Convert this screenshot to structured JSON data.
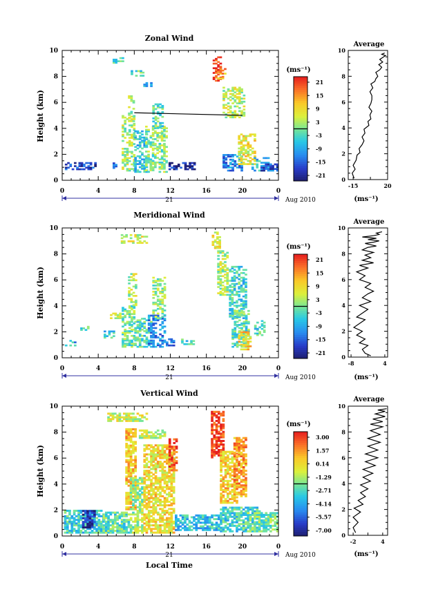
{
  "figure": {
    "date_label": "Aug 2010",
    "day_label": "21",
    "xlabel": "Local Time",
    "unit_label": "(ms⁻¹)"
  },
  "chart_data": [
    {
      "type": "heatmap",
      "title": "Zonal Wind",
      "xlabel": "",
      "ylabel": "Height (km)",
      "xticks": [
        "0",
        "4",
        "8",
        "12",
        "16",
        "20",
        "0"
      ],
      "yticks": [
        "0",
        "2",
        "4",
        "6",
        "8",
        "10"
      ],
      "xlim": [
        0,
        24
      ],
      "ylim": [
        0,
        10
      ],
      "colorbar_label": "(ms⁻¹)",
      "colorbar_ticks": [
        "21",
        "15",
        "9",
        "3",
        "-3",
        "-9",
        "-15",
        "-21"
      ],
      "colorbar_range": [
        -24,
        24
      ],
      "overlay_line": {
        "x": [
          8,
          20
        ],
        "y": [
          5.2,
          5.0
        ]
      },
      "clusters": [
        {
          "x": [
            0.3,
            3.8
          ],
          "y": [
            0.8,
            1.4
          ],
          "v": -18
        },
        {
          "x": [
            5.6,
            6.1
          ],
          "y": [
            0.9,
            1.3
          ],
          "v": -16
        },
        {
          "x": [
            6.6,
            7.9
          ],
          "y": [
            0.7,
            5.0
          ],
          "v": 3
        },
        {
          "x": [
            7.3,
            7.9
          ],
          "y": [
            4.5,
            6.5
          ],
          "v": 3
        },
        {
          "x": [
            8.0,
            9.5
          ],
          "y": [
            0.6,
            3.8
          ],
          "v": -6
        },
        {
          "x": [
            9.2,
            11.7
          ],
          "y": [
            0.6,
            4.2
          ],
          "v": 1
        },
        {
          "x": [
            10.0,
            11.2
          ],
          "y": [
            4.0,
            6.0
          ],
          "v": -2
        },
        {
          "x": [
            5.6,
            7.0
          ],
          "y": [
            9.0,
            9.4
          ],
          "v": -4
        },
        {
          "x": [
            7.6,
            9.0
          ],
          "y": [
            8.0,
            8.4
          ],
          "v": -2
        },
        {
          "x": [
            9.0,
            10.0
          ],
          "y": [
            7.2,
            7.5
          ],
          "v": -8
        },
        {
          "x": [
            11.8,
            14.8
          ],
          "y": [
            0.8,
            1.4
          ],
          "v": -20
        },
        {
          "x": [
            16.7,
            17.5
          ],
          "y": [
            7.5,
            9.5
          ],
          "v": 22
        },
        {
          "x": [
            17.2,
            18.2
          ],
          "y": [
            7.8,
            8.6
          ],
          "v": 14
        },
        {
          "x": [
            17.8,
            20.3
          ],
          "y": [
            4.8,
            7.2
          ],
          "v": 4
        },
        {
          "x": [
            17.8,
            19.9
          ],
          "y": [
            0.7,
            2.0
          ],
          "v": -12
        },
        {
          "x": [
            19.5,
            21.5
          ],
          "y": [
            1.2,
            3.6
          ],
          "v": 8
        },
        {
          "x": [
            21.0,
            23.0
          ],
          "y": [
            0.7,
            1.7
          ],
          "v": -8
        },
        {
          "x": [
            22.0,
            24.0
          ],
          "y": [
            0.7,
            1.3
          ],
          "v": -16
        }
      ]
    },
    {
      "type": "heatmap",
      "title": "Meridional Wind",
      "xlabel": "",
      "ylabel": "Height (km)",
      "xticks": [
        "0",
        "4",
        "8",
        "12",
        "16",
        "20",
        "0"
      ],
      "yticks": [
        "0",
        "2",
        "4",
        "6",
        "8",
        "10"
      ],
      "xlim": [
        0,
        24
      ],
      "ylim": [
        0,
        10
      ],
      "colorbar_label": "(ms⁻¹)",
      "colorbar_ticks": [
        "21",
        "15",
        "9",
        "3",
        "-3",
        "-9",
        "-15",
        "-21"
      ],
      "colorbar_range": [
        -24,
        24
      ],
      "clusters": [
        {
          "x": [
            0.3,
            1.5
          ],
          "y": [
            0.9,
            1.3
          ],
          "v": -8
        },
        {
          "x": [
            2.0,
            3.0
          ],
          "y": [
            2.1,
            2.4
          ],
          "v": -2
        },
        {
          "x": [
            4.6,
            5.8
          ],
          "y": [
            1.5,
            2.2
          ],
          "v": -6
        },
        {
          "x": [
            5.3,
            6.4
          ],
          "y": [
            3.0,
            3.4
          ],
          "v": 2
        },
        {
          "x": [
            6.6,
            7.9
          ],
          "y": [
            0.8,
            4.0
          ],
          "v": 0
        },
        {
          "x": [
            7.3,
            8.2
          ],
          "y": [
            4.0,
            6.5
          ],
          "v": 4
        },
        {
          "x": [
            8.0,
            10.0
          ],
          "y": [
            0.8,
            3.0
          ],
          "v": -3
        },
        {
          "x": [
            9.5,
            11.5
          ],
          "y": [
            0.8,
            3.3
          ],
          "v": -12
        },
        {
          "x": [
            10.0,
            11.5
          ],
          "y": [
            3.0,
            6.2
          ],
          "v": 2
        },
        {
          "x": [
            6.5,
            9.5
          ],
          "y": [
            8.8,
            9.4
          ],
          "v": 6
        },
        {
          "x": [
            11.5,
            12.5
          ],
          "y": [
            0.9,
            1.4
          ],
          "v": -15
        },
        {
          "x": [
            13.2,
            14.5
          ],
          "y": [
            1.0,
            1.4
          ],
          "v": -4
        },
        {
          "x": [
            16.6,
            17.4
          ],
          "y": [
            8.4,
            9.6
          ],
          "v": 8
        },
        {
          "x": [
            17.2,
            18.3
          ],
          "y": [
            4.8,
            8.2
          ],
          "v": 3
        },
        {
          "x": [
            18.5,
            20.5
          ],
          "y": [
            3.0,
            7.0
          ],
          "v": -4
        },
        {
          "x": [
            18.8,
            20.8
          ],
          "y": [
            0.8,
            3.6
          ],
          "v": -2
        },
        {
          "x": [
            19.5,
            21.0
          ],
          "y": [
            0.6,
            2.0
          ],
          "v": 10
        },
        {
          "x": [
            21.3,
            22.5
          ],
          "y": [
            1.7,
            2.9
          ],
          "v": -4
        }
      ]
    },
    {
      "type": "heatmap",
      "title": "Vertical Wind",
      "xlabel": "Local Time",
      "ylabel": "Height (km)",
      "xticks": [
        "0",
        "4",
        "8",
        "12",
        "16",
        "20",
        "0"
      ],
      "yticks": [
        "0",
        "2",
        "4",
        "6",
        "8",
        "10"
      ],
      "xlim": [
        0,
        24
      ],
      "ylim": [
        0,
        10
      ],
      "colorbar_label": "(ms⁻¹)",
      "colorbar_ticks": [
        "3.00",
        "1.57",
        "0.14",
        "-1.29",
        "-2.71",
        "-4.14",
        "-5.57",
        "-7.00"
      ],
      "colorbar_range": [
        -7.7,
        3.7
      ],
      "clusters": [
        {
          "x": [
            0.2,
            4.5
          ],
          "y": [
            0.2,
            2.0
          ],
          "v": -3.0
        },
        {
          "x": [
            2.2,
            3.5
          ],
          "y": [
            0.6,
            2.0
          ],
          "v": -6.5
        },
        {
          "x": [
            4.5,
            7.5
          ],
          "y": [
            0.2,
            1.8
          ],
          "v": -2.5
        },
        {
          "x": [
            7.0,
            8.2
          ],
          "y": [
            2.0,
            8.2
          ],
          "v": 0.8
        },
        {
          "x": [
            7.5,
            9.0
          ],
          "y": [
            0.2,
            4.5
          ],
          "v": -1.5
        },
        {
          "x": [
            9.0,
            12.3
          ],
          "y": [
            0.2,
            7.0
          ],
          "v": 0.2
        },
        {
          "x": [
            11.8,
            12.8
          ],
          "y": [
            5.0,
            7.5
          ],
          "v": 3.0
        },
        {
          "x": [
            5.0,
            9.5
          ],
          "y": [
            8.8,
            9.4
          ],
          "v": -0.6
        },
        {
          "x": [
            8.5,
            11.5
          ],
          "y": [
            7.5,
            8.2
          ],
          "v": -0.8
        },
        {
          "x": [
            12.5,
            17.5
          ],
          "y": [
            0.4,
            1.6
          ],
          "v": -3.5
        },
        {
          "x": [
            16.5,
            18.0
          ],
          "y": [
            6.0,
            9.6
          ],
          "v": 3.2
        },
        {
          "x": [
            17.5,
            19.5
          ],
          "y": [
            2.5,
            6.5
          ],
          "v": 0.5
        },
        {
          "x": [
            19.0,
            20.5
          ],
          "y": [
            3.0,
            7.5
          ],
          "v": 1.5
        },
        {
          "x": [
            17.5,
            22.0
          ],
          "y": [
            0.3,
            2.2
          ],
          "v": -3.0
        },
        {
          "x": [
            20.5,
            24.0
          ],
          "y": [
            0.3,
            1.8
          ],
          "v": -2.2
        }
      ]
    },
    {
      "type": "line",
      "title": "Average",
      "xlabel": "(ms⁻¹)",
      "xticks": [
        "-15",
        "20"
      ],
      "yticks": [
        "0",
        "2",
        "4",
        "6",
        "8",
        "10"
      ],
      "xlim": [
        -20,
        20
      ],
      "ylim": [
        0,
        10
      ],
      "x": [
        -14,
        -16,
        -13,
        -15,
        -12,
        -11,
        -8,
        -9,
        -6,
        -4,
        -6,
        -3,
        -4,
        1,
        0,
        3,
        2,
        4,
        1,
        3,
        4,
        4,
        2,
        5,
        3,
        7,
        8,
        10,
        8,
        12,
        14,
        11,
        15,
        12,
        16,
        18,
        14,
        17
      ],
      "y": [
        0.1,
        0.5,
        0.8,
        1.1,
        1.5,
        1.9,
        2.1,
        2.4,
        2.7,
        3.0,
        3.3,
        3.6,
        3.9,
        4.2,
        4.5,
        4.7,
        5.0,
        5.3,
        5.6,
        5.9,
        6.2,
        6.5,
        6.8,
        7.1,
        7.4,
        7.6,
        7.8,
        8.0,
        8.3,
        8.5,
        8.7,
        8.9,
        9.1,
        9.3,
        9.5,
        9.6,
        9.7,
        9.8
      ]
    },
    {
      "type": "line",
      "title": "Average",
      "xlabel": "(ms⁻¹)",
      "xticks": [
        "-8",
        "4"
      ],
      "yticks": [
        "0",
        "2",
        "4",
        "6",
        "8",
        "10"
      ],
      "xlim": [
        -9,
        5
      ],
      "ylim": [
        0,
        10
      ],
      "x": [
        -1,
        -3,
        -4,
        -2,
        -5,
        -3,
        -6,
        -4,
        -7,
        -5,
        -3,
        -6,
        -4,
        -2,
        -5,
        -1,
        -4,
        -2,
        0,
        -3,
        -1,
        -5,
        -3,
        -6,
        -2,
        -5,
        0,
        -4,
        -1,
        -3,
        0,
        -4,
        -2,
        1,
        -3,
        0,
        2,
        -2,
        1,
        -4,
        0,
        2,
        1,
        3
      ],
      "y": [
        0.1,
        0.3,
        0.6,
        0.9,
        1.1,
        1.4,
        1.7,
        2.0,
        2.3,
        2.6,
        2.9,
        3.1,
        3.4,
        3.7,
        4.0,
        4.3,
        4.6,
        4.9,
        5.1,
        5.4,
        5.7,
        6.0,
        6.3,
        6.6,
        6.9,
        7.1,
        7.3,
        7.5,
        7.7,
        7.9,
        8.1,
        8.3,
        8.5,
        8.6,
        8.8,
        8.9,
        9.0,
        9.1,
        9.2,
        9.3,
        9.4,
        9.5,
        9.6,
        9.7
      ]
    },
    {
      "type": "line",
      "title": "Average",
      "xlabel": "(ms⁻¹)",
      "xticks": [
        "-2",
        "4"
      ],
      "yticks": [
        "0",
        "2",
        "4",
        "6",
        "8",
        "10"
      ],
      "xlim": [
        -3,
        5
      ],
      "ylim": [
        0,
        10
      ],
      "x": [
        -1.5,
        -2,
        -1,
        -2,
        -0.5,
        -1.8,
        0,
        -1,
        0.5,
        -0.5,
        1,
        -0.5,
        1.5,
        0,
        2,
        0,
        2.5,
        0.5,
        3,
        0.5,
        3,
        1,
        3.5,
        1,
        3.5,
        1.5,
        4,
        1.5,
        4,
        2,
        4.5,
        2.5,
        4.5,
        3,
        4.8
      ],
      "y": [
        0.2,
        0.6,
        1.0,
        1.4,
        1.8,
        2.1,
        2.4,
        2.7,
        3.0,
        3.3,
        3.6,
        3.9,
        4.2,
        4.5,
        4.8,
        5.1,
        5.4,
        5.7,
        6.0,
        6.3,
        6.6,
        6.9,
        7.2,
        7.5,
        7.8,
        8.1,
        8.4,
        8.6,
        8.8,
        9.0,
        9.2,
        9.4,
        9.6,
        9.7,
        9.8
      ]
    }
  ]
}
